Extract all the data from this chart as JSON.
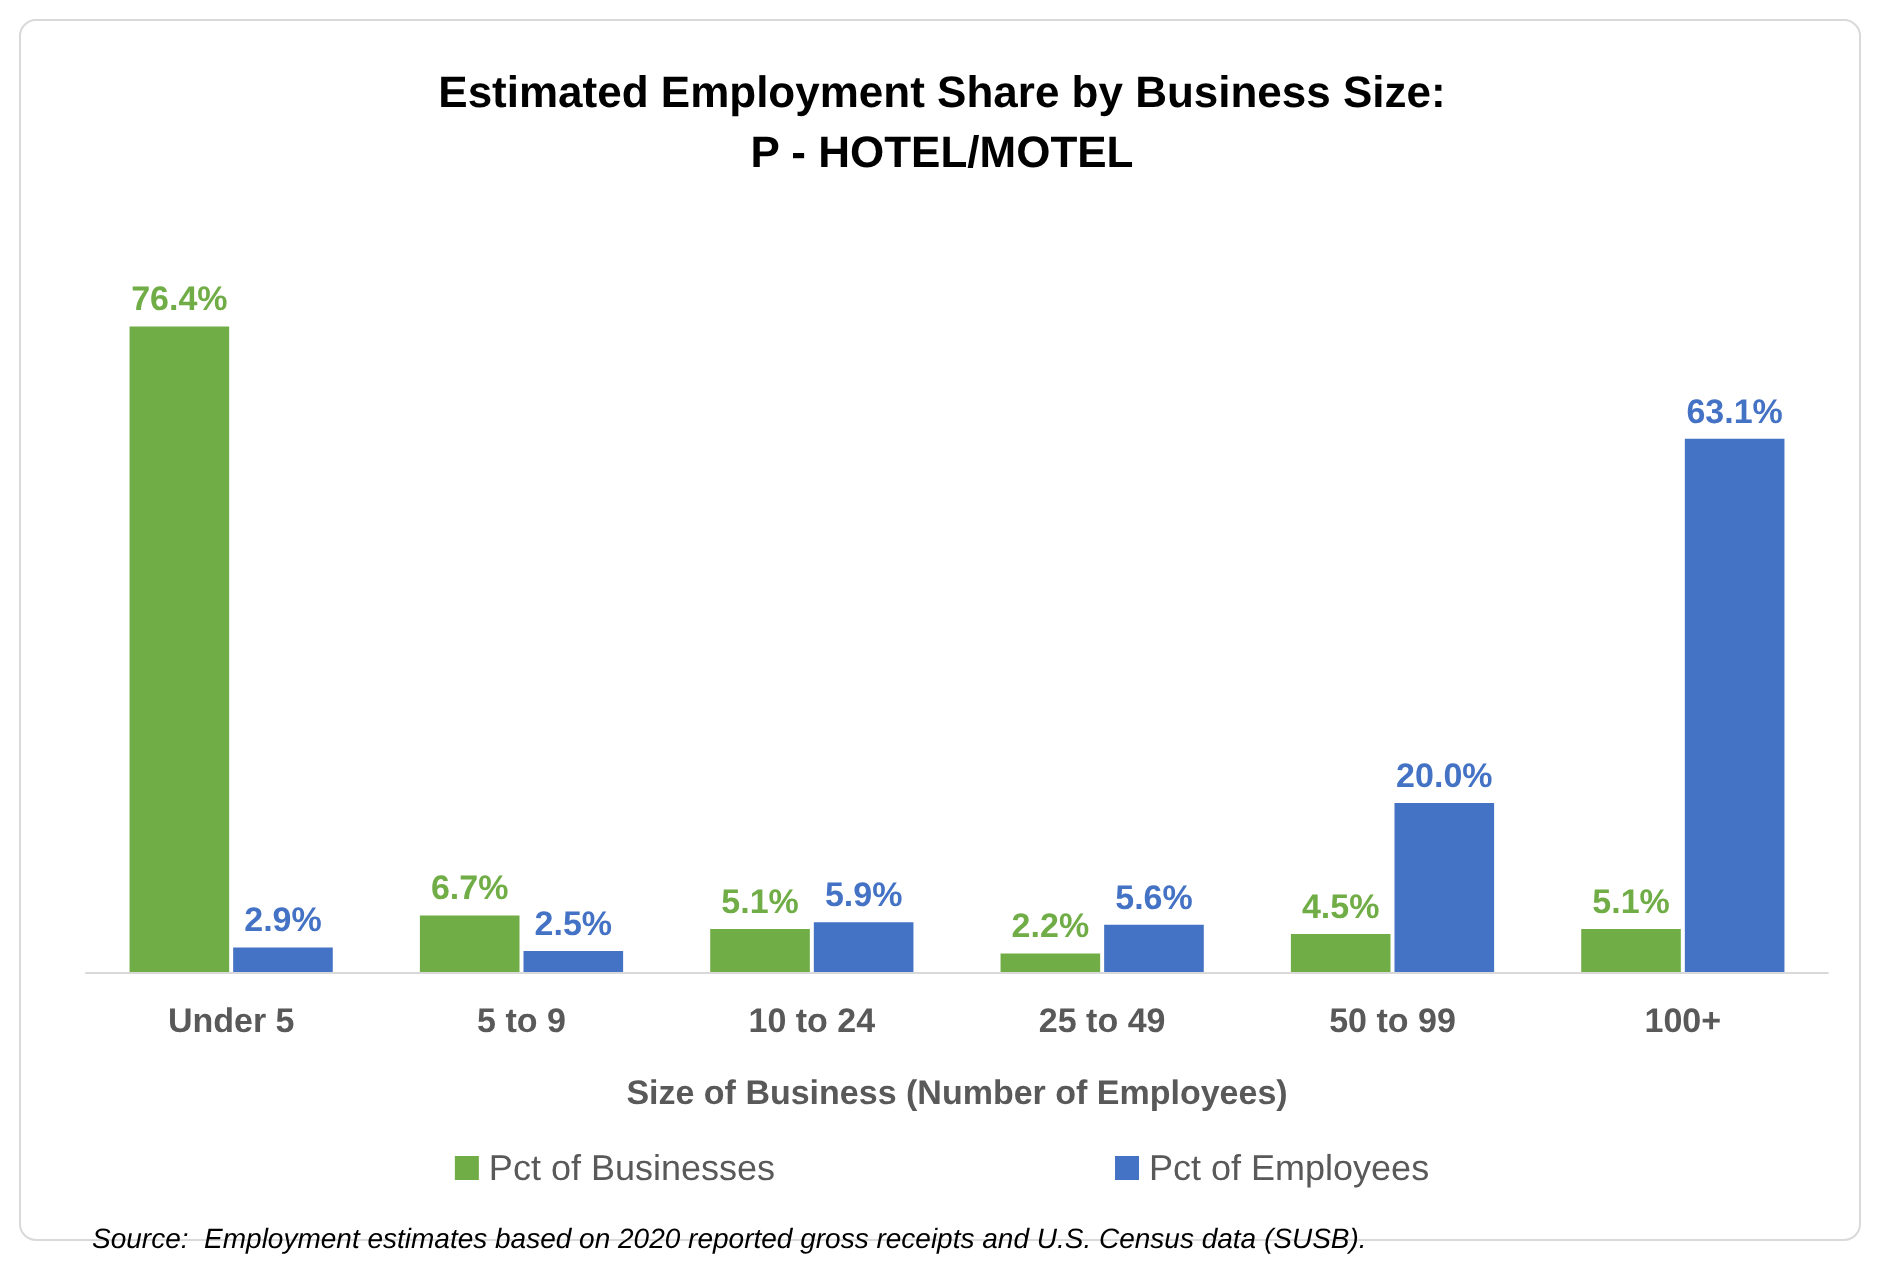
{
  "chart_data": {
    "type": "bar",
    "title": "Estimated Employment Share by Business Size:",
    "subtitle": "P - HOTEL/MOTEL",
    "xlabel": "Size of Business (Number of Employees)",
    "categories": [
      "Under 5",
      "5 to 9",
      "10 to 24",
      "25 to 49",
      "50 to 99",
      "100+"
    ],
    "series": [
      {
        "name": "Pct of Businesses",
        "color": "#70ad47",
        "values": [
          76.4,
          6.7,
          5.1,
          2.2,
          4.5,
          5.1
        ],
        "value_labels": [
          "76.4%",
          "6.7%",
          "5.1%",
          "2.2%",
          "4.5%",
          "5.1%"
        ]
      },
      {
        "name": "Pct of Employees",
        "color": "#4472c4",
        "values": [
          2.9,
          2.5,
          5.9,
          5.6,
          20.0,
          63.1
        ],
        "value_labels": [
          "2.9%",
          "2.5%",
          "5.9%",
          "5.6%",
          "20.0%",
          "63.1%"
        ]
      }
    ],
    "legend": "bottom",
    "annotations": [
      "Source:  Employment estimates based on 2020 reported gross receipts and U.S. Census data (SUSB)."
    ]
  }
}
